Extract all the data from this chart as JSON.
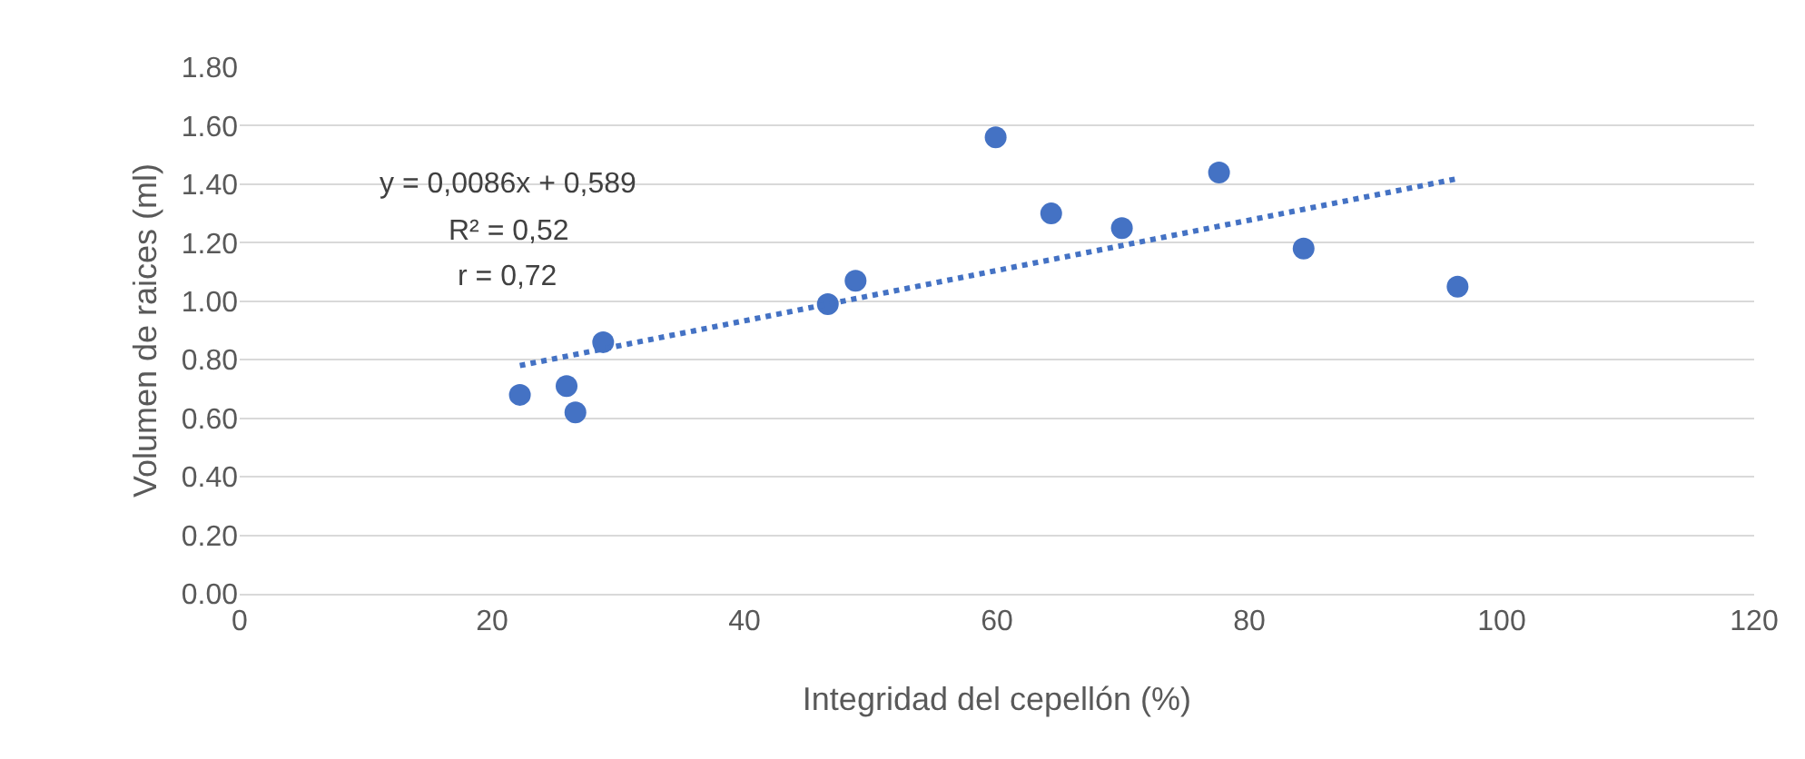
{
  "chart_data": {
    "type": "scatter",
    "xlabel": "Integridad del cepellón (%)",
    "ylabel": "Volumen de raices (ml)",
    "xlim": [
      0,
      120
    ],
    "xticks": [
      0,
      20,
      40,
      60,
      80,
      100,
      120
    ],
    "ylim": [
      0,
      1.8
    ],
    "yticks": [
      {
        "value": 0,
        "label": "0.00"
      },
      {
        "value": 0.2,
        "label": "0.20"
      },
      {
        "value": 0.4,
        "label": "0.40"
      },
      {
        "value": 0.6,
        "label": "0.60"
      },
      {
        "value": 0.8,
        "label": "0.80"
      },
      {
        "value": 1,
        "label": "1.00"
      },
      {
        "value": 1.2,
        "label": "1.20"
      },
      {
        "value": 1.4,
        "label": "1.40"
      },
      {
        "value": 1.6,
        "label": "1.60"
      },
      {
        "value": 1.8,
        "label": "1.80"
      }
    ],
    "grid": "y",
    "marker": "circle",
    "annotations": [
      "y = 0,0086x + 0,589",
      "R² = 0,52",
      "r = 0,72"
    ],
    "series": [
      {
        "color": "#4472c4",
        "x": [
          22.2,
          25.9,
          26.6,
          28.8,
          46.6,
          48.8,
          59.9,
          64.3,
          69.9,
          77.6,
          84.3,
          96.5
        ],
        "values": [
          0.68,
          0.71,
          0.62,
          0.86,
          0.99,
          1.07,
          1.56,
          1.3,
          1.25,
          1.44,
          1.18,
          1.05
        ]
      },
      {
        "type": "line",
        "color": "#4472c4",
        "line_style": "dotted",
        "marker": "none",
        "x": [
          22.2,
          96.5
        ],
        "values": [
          0.78,
          1.419
        ]
      }
    ]
  }
}
